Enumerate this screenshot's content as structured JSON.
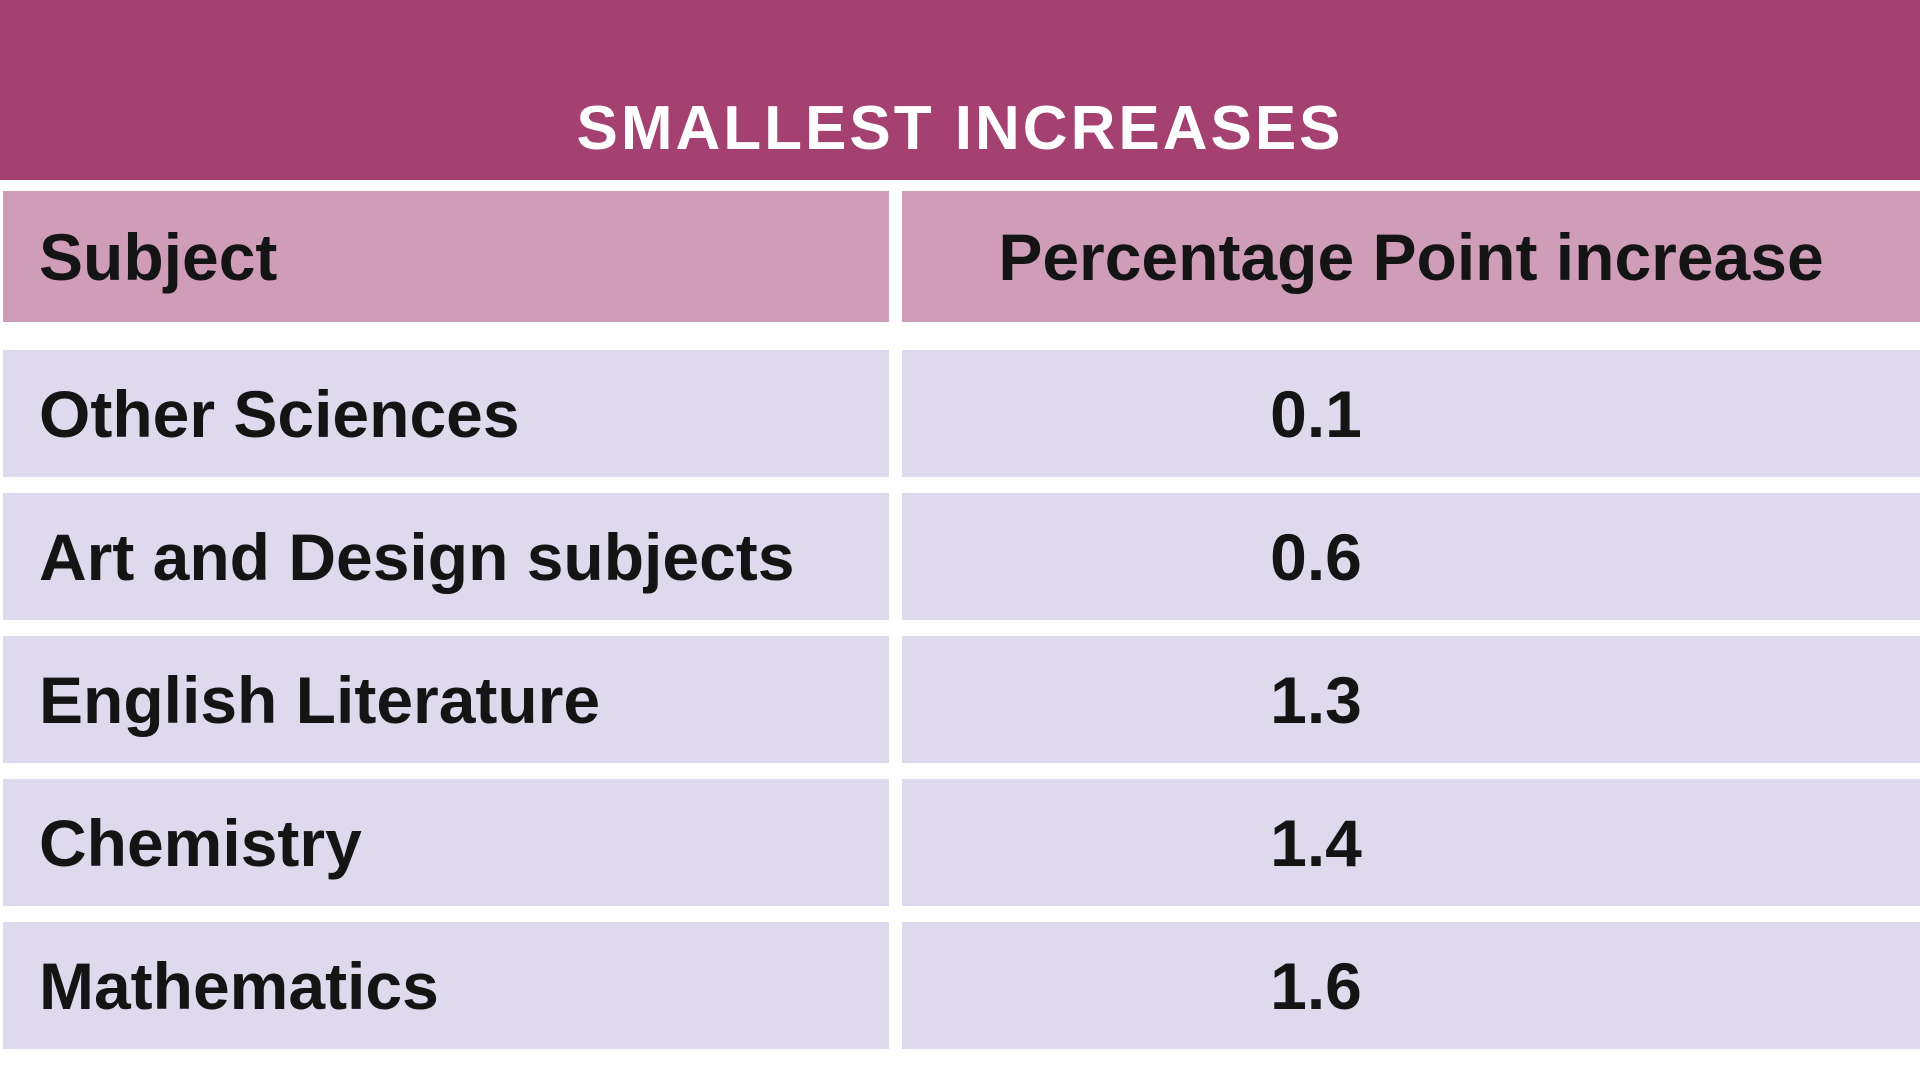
{
  "title": "SMALLEST INCREASES",
  "table": {
    "columns": [
      "Subject",
      "Percentage Point increase"
    ],
    "rows": [
      {
        "subject": "Other Sciences",
        "value": "0.1"
      },
      {
        "subject": "Art and Design subjects",
        "value": "0.6"
      },
      {
        "subject": "English Literature",
        "value": "1.3"
      },
      {
        "subject": "Chemistry",
        "value": "1.4"
      },
      {
        "subject": "Mathematics",
        "value": "1.6"
      }
    ]
  },
  "colors": {
    "title_bg": "#A44170",
    "title_text": "#FFFFFF",
    "header_bg": "#CF9DB8",
    "row_bg": "#DED9EC",
    "body_text": "#141414",
    "divider": "#FFFFFF"
  },
  "chart_data": {
    "type": "table",
    "title": "SMALLEST INCREASES",
    "columns": [
      "Subject",
      "Percentage Point increase"
    ],
    "categories": [
      "Other Sciences",
      "Art and Design subjects",
      "English Literature",
      "Chemistry",
      "Mathematics"
    ],
    "values": [
      0.1,
      0.6,
      1.3,
      1.4,
      1.6
    ],
    "layout_hints": {
      "header_alignment": "left column left-aligned, value column centered",
      "row_striping": "none - all body rows same lavender color",
      "gridlines": "white gaps between rows and columns"
    }
  }
}
